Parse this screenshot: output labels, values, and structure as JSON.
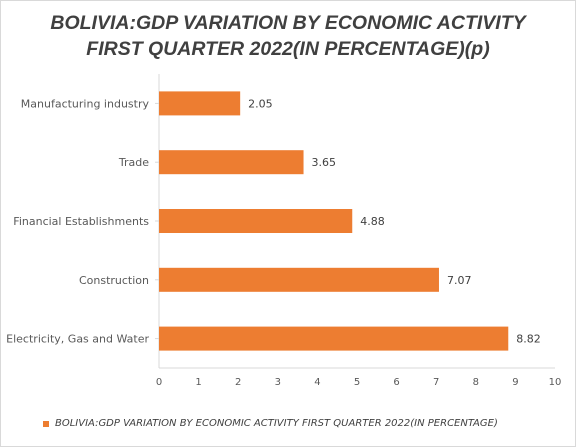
{
  "chart_data": {
    "type": "bar",
    "orientation": "horizontal",
    "title_lines": [
      "BOLIVIA:GDP VARIATION BY ECONOMIC ACTIVITY",
      "FIRST QUARTER 2022(IN PERCENTAGE)(p)"
    ],
    "categories": [
      "Manufacturing industry",
      "Trade",
      "Financial Establishments",
      "Construction",
      "Electricity, Gas and Water"
    ],
    "series": [
      {
        "name": "BOLIVIA:GDP VARIATION BY ECONOMIC ACTIVITY FIRST QUARTER 2022(IN PERCENTAGE)",
        "values": [
          2.05,
          3.65,
          4.88,
          7.07,
          8.82
        ],
        "labels": [
          "2.05",
          "3.65",
          "4.88",
          "7.07",
          "8.82"
        ],
        "color": "#ed7d31"
      }
    ],
    "xlim": [
      0,
      10
    ],
    "xticks": [
      "0",
      "1",
      "2",
      "3",
      "4",
      "5",
      "6",
      "7",
      "8",
      "9",
      "10"
    ],
    "grid": false,
    "legend": "bottom"
  }
}
